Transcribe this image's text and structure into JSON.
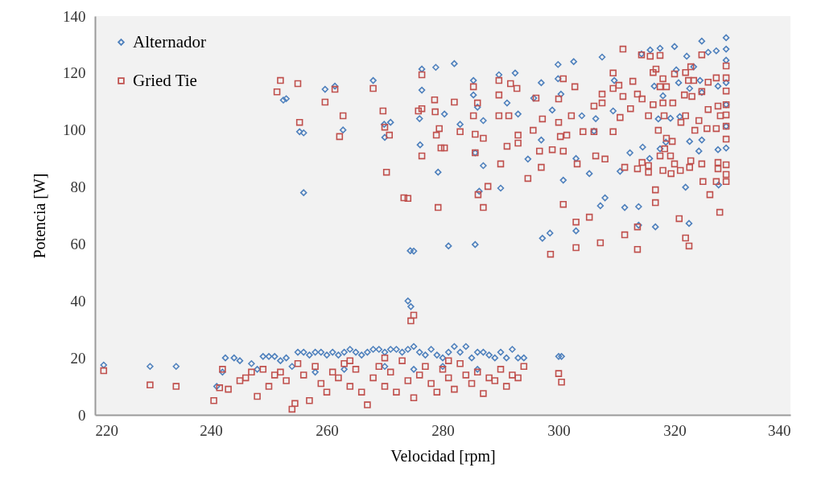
{
  "chart_data": {
    "type": "scatter",
    "xlabel": "Velocidad [rpm]",
    "ylabel": "Potencia [W]",
    "xlim": [
      220,
      340
    ],
    "xticks": [
      220,
      240,
      260,
      280,
      300,
      320,
      340
    ],
    "ylim": [
      0,
      140
    ],
    "yticks": [
      0,
      20,
      40,
      60,
      80,
      100,
      120,
      140
    ],
    "grid": false,
    "legend": "top left",
    "series": [
      {
        "name": "Alternador",
        "color": "#4f81bd",
        "marker": "diamond",
        "x": [
          221.5,
          229.5,
          234,
          241,
          242,
          242.5,
          244,
          245,
          247,
          248,
          249,
          250,
          251,
          252,
          253,
          254,
          255,
          256,
          257,
          258,
          259,
          260,
          261,
          262,
          263,
          264,
          265,
          266,
          267,
          268,
          269,
          270,
          271,
          272,
          273,
          274,
          275,
          276,
          277,
          278,
          279,
          280,
          281,
          282,
          283,
          284,
          285,
          286,
          287,
          288,
          289,
          290,
          291,
          292,
          293,
          294,
          300,
          300.5,
          258,
          263,
          270,
          275,
          280,
          286,
          274,
          274.5,
          275,
          256,
          256,
          253,
          252.5,
          259.7,
          261.4,
          262.8,
          255.3,
          268,
          269.9,
          271,
          270,
          276.4,
          278.8,
          276.4,
          276,
          276.1,
          274.4,
          279.2,
          282,
          285.3,
          285.3,
          286,
          287,
          283,
          289.7,
          292.5,
          291.1,
          293,
          287,
          285.6,
          286.3,
          290,
          280.3,
          281,
          285.6,
          297,
          295.7,
          298.9,
          299.9,
          302.6,
          299.9,
          300.4,
          297,
          294.7,
          300.8,
          303,
          305.3,
          304,
          306.4,
          306.1,
          307.5,
          309.6,
          309.4,
          297.2,
          298.5,
          303,
          307.2,
          308,
          311.4,
          313.8,
          310.6,
          312.3,
          314.5,
          315.7,
          314.3,
          315.8,
          317.5,
          320,
          324.7,
          327.2,
          325.8,
          328.9,
          328.9,
          322.1,
          320.3,
          323.3,
          316.5,
          320.7,
          324.4,
          327.5,
          318,
          322.6,
          324.7,
          317.2,
          319.3,
          320.9,
          322.6,
          324.7,
          327.5,
          328.9,
          324.2,
          318.5,
          317.5,
          321.9,
          322.5,
          327.6,
          316.7,
          313.8,
          328.9,
          328.9,
          328.9,
          328.9
        ],
        "values": [
          17.5,
          17,
          17,
          10,
          15,
          20,
          20,
          19,
          18,
          16,
          20.5,
          20.5,
          20.5,
          19,
          20,
          17,
          22,
          22,
          21,
          22,
          22,
          21,
          22,
          21,
          22,
          23,
          22,
          21,
          22,
          23,
          23,
          22,
          23,
          23,
          22,
          23,
          24,
          22,
          21,
          23,
          21,
          20,
          22,
          24,
          22,
          24,
          20,
          22,
          22,
          21,
          20,
          22,
          20,
          23,
          20,
          20,
          20.5,
          20.5,
          15,
          16,
          17,
          16,
          17,
          16,
          40,
          38,
          57.5,
          78,
          99,
          111,
          110.5,
          114.3,
          115.4,
          100,
          99.4,
          117.4,
          102,
          102.7,
          97.4,
          121.4,
          122,
          114,
          104,
          94.8,
          57.6,
          85.2,
          123.3,
          117.4,
          112.3,
          108,
          103.3,
          102,
          119.4,
          120,
          109.5,
          105.6,
          87.5,
          92,
          78.5,
          79.6,
          105.6,
          59.3,
          59.8,
          116.6,
          111.2,
          107,
          123,
          124,
          118,
          112.6,
          96.5,
          89.8,
          82.4,
          90,
          84.7,
          105,
          104,
          99.6,
          125.6,
          117.4,
          106.7,
          62,
          63.8,
          64.6,
          73.4,
          76.2,
          72.8,
          73.1,
          85.5,
          92,
          94,
          90,
          126.7,
          128.1,
          128.7,
          129.3,
          131.2,
          127.8,
          127.3,
          132.4,
          128.4,
          125.9,
          121.1,
          122.2,
          115.4,
          116.6,
          117.4,
          115.4,
          112,
          114.6,
          113.2,
          103.9,
          104.1,
          104.7,
          96,
          96.5,
          93.1,
          93.7,
          92.6,
          95.7,
          93.4,
          79.9,
          67.2,
          80.7,
          66,
          66.6,
          124.5,
          116.6,
          108.9,
          101.3
        ]
      },
      {
        "name": "Gried Tie",
        "color": "#c0504d",
        "marker": "square",
        "x": [
          221.5,
          229.5,
          234,
          240.5,
          241.5,
          242,
          243,
          245,
          246,
          247,
          248,
          249,
          250,
          251,
          252,
          253,
          254,
          254.5,
          255,
          256,
          257,
          258,
          259,
          260,
          261,
          262,
          263,
          264,
          265,
          266,
          267,
          268,
          269,
          270,
          271,
          272,
          273,
          274,
          275,
          276,
          277,
          278,
          279,
          280,
          281,
          282,
          283,
          284,
          285,
          286,
          287,
          288,
          289,
          290,
          291,
          292,
          293,
          294,
          300,
          300.5,
          264,
          270,
          281,
          274.5,
          275,
          274,
          252,
          251.4,
          255,
          255.3,
          259.7,
          261.4,
          262.8,
          262.2,
          268,
          269.7,
          270,
          270.8,
          270.3,
          273.3,
          276.4,
          278.6,
          276.4,
          275.8,
          278.7,
          279.4,
          278.9,
          279.7,
          276.4,
          279.2,
          282,
          283,
          280.3,
          285.3,
          285.3,
          285.6,
          287,
          286,
          285.6,
          286.1,
          287.8,
          287,
          289.7,
          289.7,
          289.7,
          291.4,
          291.7,
          292.8,
          293,
          293,
          291.1,
          290,
          294.7,
          295.6,
          296.1,
          297.2,
          296.7,
          297,
          298.9,
          300,
          300.3,
          301.4,
          300.8,
          300,
          300.8,
          302.2,
          302.8,
          304.2,
          306.1,
          306.1,
          307.5,
          307.5,
          306.4,
          308,
          303.2,
          300.8,
          303,
          305.3,
          298.6,
          303,
          307.2,
          311.4,
          313.6,
          313.6,
          309.4,
          309.4,
          311.1,
          312.8,
          310.6,
          309.4,
          310.4,
          311.1,
          312.4,
          313.6,
          314.4,
          315.5,
          316.3,
          314.3,
          315.8,
          317.5,
          316.8,
          316.3,
          318,
          317.5,
          318.6,
          320,
          321.9,
          322.8,
          324.7,
          322.4,
          323.3,
          325.8,
          327.2,
          321.7,
          323,
          324.7,
          318,
          319.7,
          318.2,
          321.9,
          321.1,
          324.2,
          325.8,
          327.5,
          327.9,
          323.5,
          325.6,
          327.2,
          317.2,
          318.6,
          319.6,
          318.3,
          317.5,
          319.3,
          314.4,
          315.5,
          313.6,
          315.5,
          311.4,
          318,
          319.4,
          320,
          321,
          322.6,
          322.8,
          324.7,
          327.5,
          327.5,
          328.9,
          324.9,
          327.2,
          328.9,
          328.9,
          326.1,
          316.7,
          316.7,
          320.8,
          321.9,
          322.5,
          327.8,
          328.9,
          328.9,
          328.9,
          328.9,
          328.9,
          328.9,
          328.9
        ],
        "values": [
          15.5,
          10.5,
          10,
          5,
          9.5,
          16,
          9,
          12,
          13,
          15,
          6.5,
          16,
          10,
          14,
          15,
          12,
          2,
          4,
          18,
          14,
          5,
          17,
          11,
          8,
          15,
          13,
          18,
          10,
          16,
          8,
          3.5,
          13,
          17,
          10,
          15,
          8,
          19,
          12,
          6,
          14,
          17,
          11,
          8,
          16,
          13,
          9,
          18,
          14,
          11,
          15,
          7.5,
          13,
          12,
          16,
          10,
          14,
          13,
          17,
          14.5,
          11.5,
          19,
          20,
          19,
          33,
          35,
          76,
          117.4,
          113.4,
          116.3,
          102.7,
          109.8,
          114.3,
          105,
          97.7,
          114.6,
          106.7,
          101,
          98.2,
          85.2,
          76.2,
          119.4,
          110.6,
          107.5,
          106.7,
          106.4,
          100.5,
          98.2,
          93.7,
          90.9,
          72.8,
          109.8,
          99.4,
          93.7,
          115.2,
          105,
          98.5,
          97.1,
          109.5,
          92,
          77.3,
          80.2,
          72.8,
          117.4,
          112.3,
          105,
          105,
          116.3,
          114.6,
          98.2,
          95.4,
          94.3,
          88.1,
          83,
          99.9,
          111.2,
          103.9,
          92.6,
          86.9,
          93.1,
          102.7,
          97.7,
          98.2,
          92.6,
          110.9,
          118,
          105,
          115.2,
          99.4,
          99.4,
          108.4,
          109.5,
          112.6,
          90.9,
          89.8,
          88.1,
          73.9,
          67.7,
          69.4,
          56.4,
          58.7,
          60.4,
          63.2,
          66,
          58.1,
          99.4,
          120,
          128.4,
          117.1,
          104.4,
          114.6,
          115.7,
          111.8,
          107.5,
          112.6,
          110.9,
          105,
          108.9,
          126.4,
          125.9,
          126.2,
          121.4,
          120.2,
          118,
          115.2,
          115.2,
          119.7,
          120.2,
          122.2,
          126.4,
          117.4,
          117.4,
          116.8,
          118.3,
          112.3,
          111.8,
          113.5,
          109.5,
          109.5,
          105,
          105,
          102.7,
          103.3,
          107.2,
          108.4,
          105,
          99.9,
          100.5,
          100.5,
          99.9,
          97.1,
          96,
          93.4,
          90.9,
          90.9,
          88.6,
          87.5,
          86.4,
          85.2,
          86.9,
          85.8,
          84.7,
          88.1,
          85.8,
          86.9,
          89.2,
          88.1,
          88.6,
          86.4,
          87.8,
          81.9,
          81.9,
          81.9,
          84.4,
          77.3,
          79,
          74.5,
          68.9,
          62.1,
          59.3,
          71.1,
          122.5,
          118.3,
          113.7,
          108.9,
          105.3,
          101.3,
          96.8
        ]
      }
    ]
  }
}
